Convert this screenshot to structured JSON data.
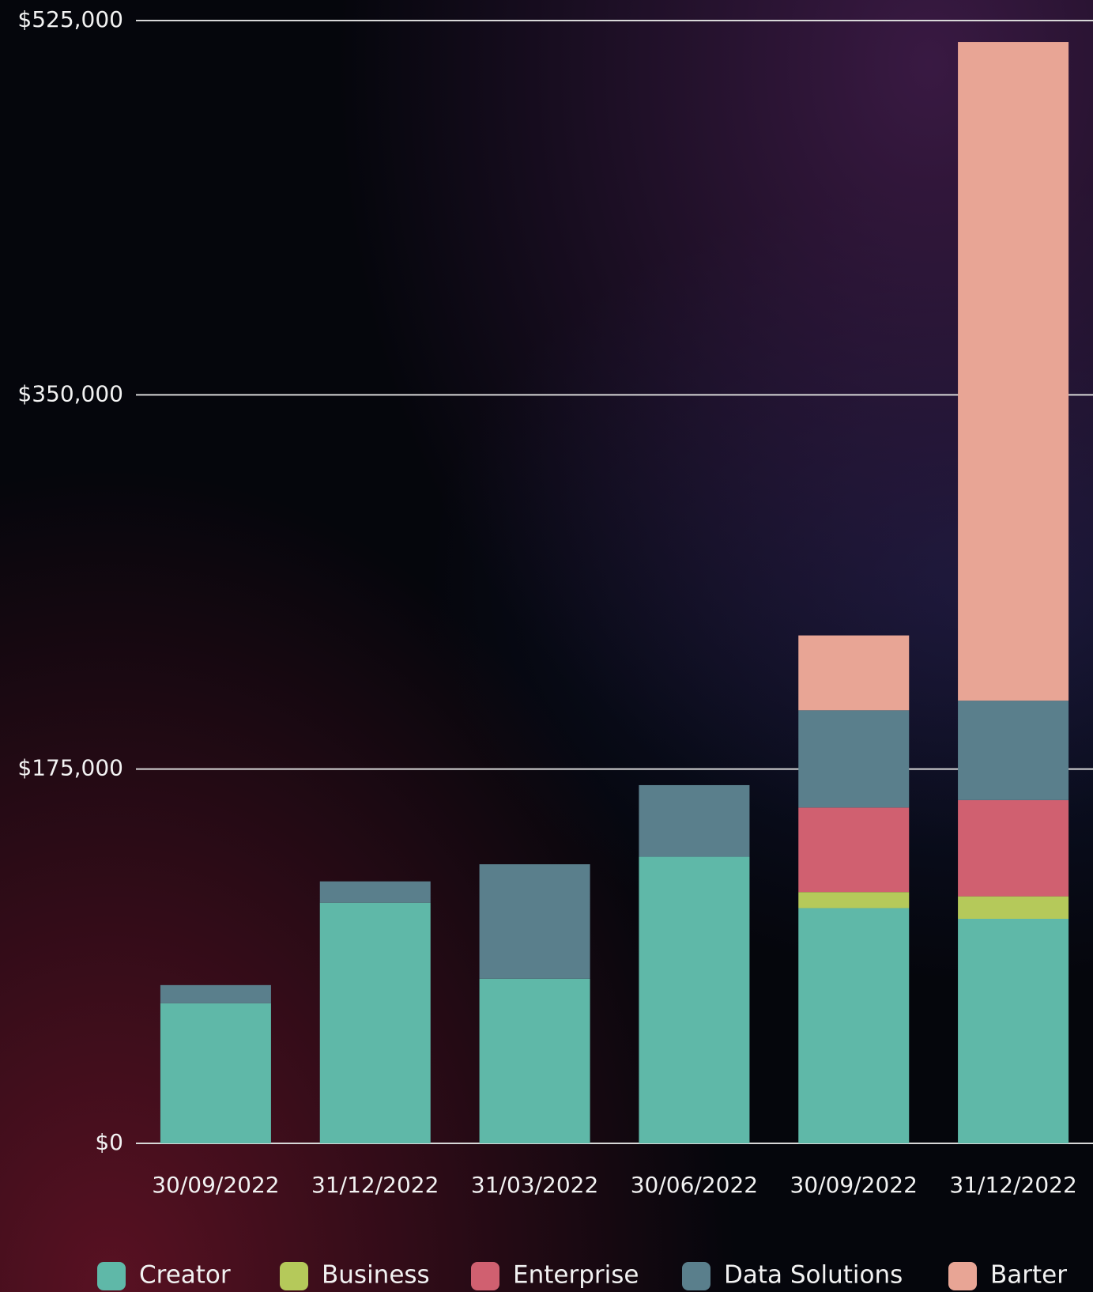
{
  "chart_data": {
    "type": "stacked_bar",
    "categories": [
      "30/09/2022",
      "31/12/2022",
      "31/03/2022",
      "30/06/2022",
      "30/09/2022",
      "31/12/2022"
    ],
    "series": [
      {
        "name": "Creator",
        "color": "#5fb8a8",
        "values": [
          65500,
          112500,
          77000,
          134000,
          110000,
          105000
        ]
      },
      {
        "name": "Business",
        "color": "#b5c95a",
        "values": [
          0,
          0,
          0,
          0,
          7500,
          10500
        ]
      },
      {
        "name": "Enterprise",
        "color": "#d06070",
        "values": [
          0,
          0,
          0,
          0,
          39500,
          45000
        ]
      },
      {
        "name": "Data Solutions",
        "color": "#5a7f8c",
        "values": [
          8500,
          10000,
          53500,
          33500,
          45500,
          46500
        ]
      },
      {
        "name": "Barter",
        "color": "#e8a595",
        "values": [
          0,
          0,
          0,
          0,
          35000,
          308000
        ]
      }
    ],
    "ylim": [
      0,
      525000
    ],
    "yticks": [
      {
        "value": 0,
        "label": "$0"
      },
      {
        "value": 175000,
        "label": "$175,000"
      },
      {
        "value": 350000,
        "label": "$350,000"
      },
      {
        "value": 525000,
        "label": "$525,000"
      }
    ],
    "grid": true,
    "legend": "bottom"
  }
}
